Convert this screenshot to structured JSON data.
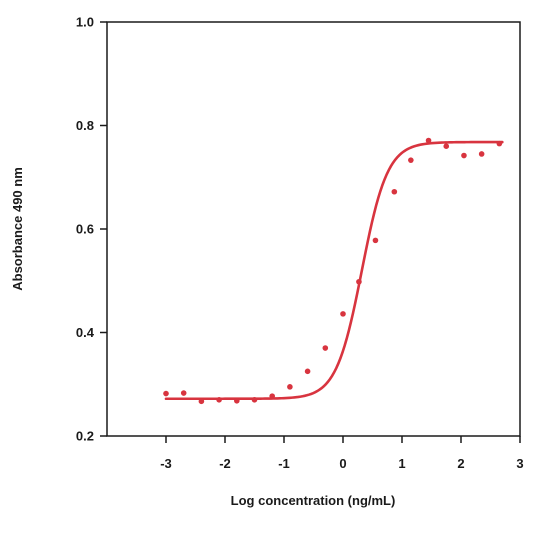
{
  "chart_data": {
    "type": "scatter",
    "title": "",
    "xlabel": "Log concentration (ng/mL)",
    "ylabel": "Absorbance 490 nm",
    "xlim": [
      -4,
      3
    ],
    "ylim": [
      0.2,
      1.0
    ],
    "xticks": [
      -3,
      -2,
      -1,
      0,
      1,
      2,
      3
    ],
    "xtick_labels": [
      "-3",
      "-2",
      "-1",
      "0",
      "1",
      "2",
      "3"
    ],
    "yticks": [
      0.2,
      0.4,
      0.6,
      0.8,
      1.0
    ],
    "ytick_labels": [
      "0.2",
      "0.4",
      "0.6",
      "0.8",
      "1.0"
    ],
    "grid": false,
    "series": [
      {
        "kind": "points",
        "color": "#d8343f",
        "x": [
          -3.0,
          -2.7,
          -2.4,
          -2.1,
          -1.8,
          -1.5,
          -1.2,
          -0.9,
          -0.6,
          -0.3,
          0.0,
          0.27,
          0.55,
          0.87,
          1.15,
          1.45,
          1.75,
          2.05,
          2.35,
          2.65
        ],
        "y": [
          0.282,
          0.283,
          0.267,
          0.27,
          0.268,
          0.27,
          0.277,
          0.295,
          0.325,
          0.37,
          0.436,
          0.498,
          0.578,
          0.672,
          0.733,
          0.771,
          0.76,
          0.742,
          0.745,
          0.765
        ]
      },
      {
        "kind": "fit",
        "color": "#d8343f",
        "model": "4PL",
        "bottom": 0.272,
        "top": 0.768,
        "ec50_log": 0.32,
        "hill": 2.0,
        "x_range": [
          -3.0,
          2.7
        ]
      }
    ]
  }
}
